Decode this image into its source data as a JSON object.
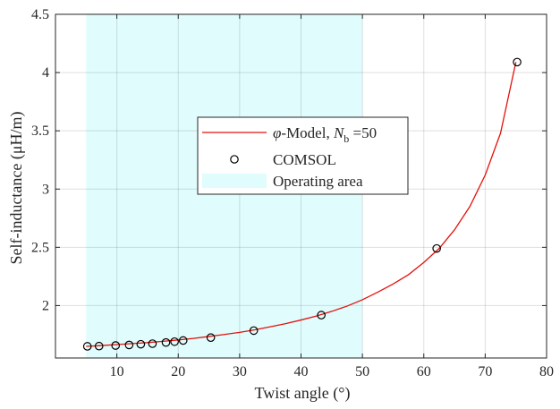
{
  "chart_data": {
    "type": "line",
    "title": "",
    "xlabel": "Twist angle (°)",
    "ylabel": "Self-inductance (μH/m)",
    "xlim": [
      0,
      80
    ],
    "ylim": [
      1.55,
      4.5
    ],
    "xticks": [
      10,
      20,
      30,
      40,
      50,
      60,
      70,
      80
    ],
    "yticks": [
      2,
      2.5,
      3,
      3.5,
      4,
      4.5
    ],
    "xtick_labels": [
      "10",
      "20",
      "30",
      "40",
      "50",
      "60",
      "70",
      "80"
    ],
    "ytick_labels": [
      "2",
      "2.5",
      "3",
      "3.5",
      "4",
      "4.5"
    ],
    "grid": true,
    "legend_position": "center",
    "shaded_region": {
      "name": "Operating area",
      "x_range": [
        5,
        50
      ],
      "color": "#e0fcfd"
    },
    "series": [
      {
        "name": "φ-Model, N_b =50",
        "style": "line",
        "color": "#e3120b",
        "x": [
          5,
          7,
          10,
          12,
          15,
          17.5,
          20,
          22.5,
          25,
          27.5,
          30,
          32.5,
          35,
          37.5,
          40,
          42.5,
          45,
          47.5,
          50,
          52.5,
          55,
          57.5,
          60,
          62.5,
          65,
          67.5,
          70,
          72.5,
          75
        ],
        "y": [
          1.65,
          1.655,
          1.665,
          1.672,
          1.682,
          1.693,
          1.705,
          1.718,
          1.735,
          1.752,
          1.77,
          1.792,
          1.818,
          1.845,
          1.876,
          1.91,
          1.95,
          1.995,
          2.05,
          2.115,
          2.185,
          2.265,
          2.37,
          2.49,
          2.65,
          2.85,
          3.12,
          3.48,
          4.09
        ]
      },
      {
        "name": "COMSOL",
        "style": "marker",
        "color": "#000000",
        "x": [
          5.2,
          7.1,
          9.8,
          12,
          13.9,
          15.8,
          18,
          19.4,
          20.8,
          25.3,
          32.3,
          43.3,
          62.1,
          75.2
        ],
        "y": [
          1.65,
          1.652,
          1.657,
          1.662,
          1.668,
          1.673,
          1.683,
          1.69,
          1.7,
          1.725,
          1.785,
          1.918,
          2.49,
          4.09
        ]
      }
    ]
  },
  "legend": {
    "model_symbol": "φ",
    "model_text": "-Model, ",
    "model_n": "N",
    "model_sub": "b",
    "model_eq": " =50",
    "comsol": "COMSOL",
    "operating": "Operating area"
  },
  "axes": {
    "xlabel": "Twist angle (°)",
    "ylabel": "Self-inductance (μH/m)"
  }
}
